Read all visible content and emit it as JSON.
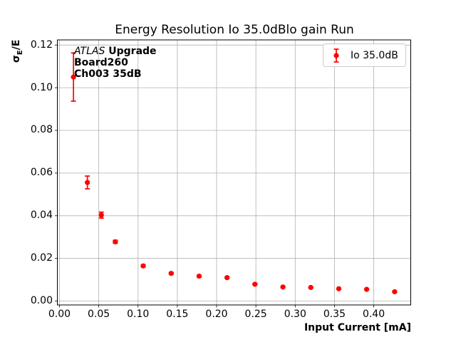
{
  "title": "Energy Resolution Io 35.0dBlo gain Run",
  "axes": {
    "xlabel": "Input Current [mA]",
    "ylabel_sigma": "σ",
    "ylabel_sub": "E",
    "ylabel_rest": "/E"
  },
  "annotation": {
    "experiment": "ATLAS",
    "experiment_suffix": " Upgrade",
    "line2": "Board260",
    "line3": "Ch003 35dB"
  },
  "legend": {
    "label": "Io 35.0dB"
  },
  "colors": {
    "series": "#ff0000",
    "grid": "#b0b0b0",
    "spine": "#000000",
    "legend_border": "#cccccc"
  },
  "chart_data": {
    "type": "scatter",
    "title": "Energy Resolution Io 35.0dBlo gain Run",
    "xlabel": "Input Current [mA]",
    "ylabel": "σ_E/E",
    "grid": true,
    "legend_position": "upper right",
    "xlim": [
      -0.0027,
      0.4471
    ],
    "ylim": [
      -0.0018,
      0.1224
    ],
    "xticks": [
      0.0,
      0.05,
      0.1,
      0.15,
      0.2,
      0.25,
      0.3,
      0.35,
      0.4
    ],
    "yticks": [
      0.0,
      0.02,
      0.04,
      0.06,
      0.08,
      0.1,
      0.12
    ],
    "series": [
      {
        "name": "Io 35.0dB",
        "color": "#ff0000",
        "marker": "o",
        "x": [
          0.0178,
          0.0355,
          0.0533,
          0.0711,
          0.1066,
          0.1422,
          0.1777,
          0.2133,
          0.2488,
          0.2844,
          0.3199,
          0.3555,
          0.391,
          0.4266
        ],
        "y": [
          0.105,
          0.0556,
          0.0403,
          0.0278,
          0.0165,
          0.013,
          0.0117,
          0.011,
          0.0079,
          0.0066,
          0.0064,
          0.0058,
          0.0055,
          0.0044
        ],
        "yerr": [
          0.0113,
          0.003,
          0.0014,
          0.0007,
          0.0005,
          0.0004,
          0.0004,
          0.0003,
          0.0003,
          0.0002,
          0.0002,
          0.0002,
          0.0002,
          0.0002
        ]
      }
    ]
  }
}
